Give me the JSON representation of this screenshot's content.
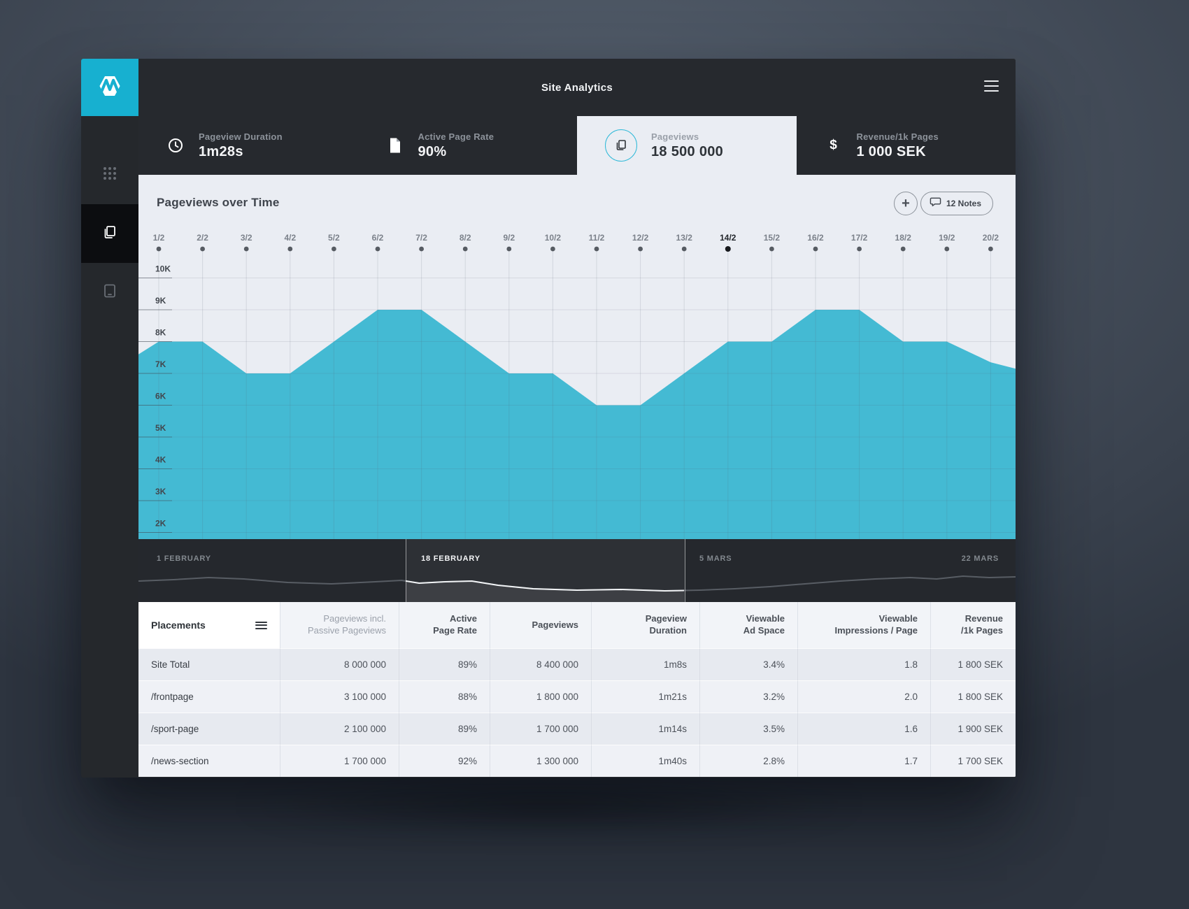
{
  "app": {
    "title": "Site Analytics",
    "menu_icon": "hamburger-icon"
  },
  "colors": {
    "accent": "#17b0d0",
    "area_fill": "#44bad3",
    "dark_bar": "#26292e",
    "panel_bg": "#eaedf3"
  },
  "sidebar": {
    "logo_icon": "pulse-hexagon-logo",
    "items": [
      {
        "icon": "grid-icon",
        "active": false
      },
      {
        "icon": "pages-icon",
        "active": true
      },
      {
        "icon": "device-icon",
        "active": false
      }
    ]
  },
  "kpis": [
    {
      "icon": "clock-icon",
      "label": "Pageview Duration",
      "value": "1m28s",
      "active": false
    },
    {
      "icon": "page-icon",
      "label": "Active Page Rate",
      "value": "90%",
      "active": false
    },
    {
      "icon": "pages-icon",
      "label": "Pageviews",
      "value": "18 500 000",
      "active": true
    },
    {
      "icon": "dollar-icon",
      "label": "Revenue/1k Pages",
      "value": "1 000 SEK",
      "active": false
    }
  ],
  "panel": {
    "title": "Pageviews over Time",
    "add_button_label": "+",
    "notes_button_label": "12 Notes",
    "notes_icon": "speech-bubble-icon"
  },
  "chart_data": {
    "type": "area",
    "title": "Pageviews over Time",
    "x": [
      "1/2",
      "2/2",
      "3/2",
      "4/2",
      "5/2",
      "6/2",
      "7/2",
      "8/2",
      "9/2",
      "10/2",
      "11/2",
      "12/2",
      "13/2",
      "14/2",
      "15/2",
      "16/2",
      "17/2",
      "18/2",
      "19/2",
      "20/2"
    ],
    "values": [
      8000,
      8000,
      7000,
      7000,
      8000,
      9000,
      9000,
      8000,
      7000,
      7000,
      6000,
      6000,
      7000,
      8000,
      8000,
      9000,
      9000,
      8000,
      8000,
      7350
    ],
    "edge_left_value": 7600,
    "edge_right_value": 7150,
    "selected_x": "14/2",
    "yticks": [
      "10K",
      "9K",
      "8K",
      "7K",
      "6K",
      "5K",
      "4K",
      "3K",
      "2K"
    ],
    "ylim": [
      1790,
      10900
    ],
    "grid": true,
    "legend": "none",
    "fill_color": "#44bad3"
  },
  "timeline": {
    "labels": [
      {
        "text": "1 FEBRUARY",
        "anchor": "left",
        "bright": false
      },
      {
        "text": "18 FEBRUARY",
        "anchor": "window-start",
        "bright": true
      },
      {
        "text": "5 MARS",
        "anchor": "window-end",
        "bright": false
      },
      {
        "text": "22 MARS",
        "anchor": "right",
        "bright": false
      }
    ],
    "window_fraction": [
      0.3047,
      0.622
    ],
    "spark": [
      [
        0,
        60
      ],
      [
        0.04,
        58
      ],
      [
        0.08,
        55
      ],
      [
        0.12,
        57
      ],
      [
        0.17,
        62
      ],
      [
        0.22,
        64
      ],
      [
        0.27,
        61
      ],
      [
        0.3,
        59
      ],
      [
        0.32,
        63
      ],
      [
        0.35,
        61
      ],
      [
        0.38,
        60
      ],
      [
        0.41,
        66
      ],
      [
        0.45,
        71
      ],
      [
        0.5,
        73
      ],
      [
        0.55,
        72
      ],
      [
        0.6,
        74
      ],
      [
        0.64,
        73
      ],
      [
        0.68,
        71
      ],
      [
        0.72,
        68
      ],
      [
        0.76,
        64
      ],
      [
        0.8,
        60
      ],
      [
        0.84,
        57
      ],
      [
        0.88,
        55
      ],
      [
        0.91,
        57
      ],
      [
        0.94,
        53
      ],
      [
        0.97,
        55
      ],
      [
        1,
        54
      ]
    ]
  },
  "table": {
    "first_header": "Placements",
    "first_header_icon": "hamburger-icon",
    "headers": [
      "Pageviews incl.\nPassive Pageviews",
      "Active\nPage Rate",
      "Pageviews",
      "Pageview\nDuration",
      "Viewable\nAd Space",
      "Viewable\nImpressions / Page",
      "Revenue\n/1k Pages"
    ],
    "rows": [
      {
        "placement": "Site Total",
        "cells": [
          "8 000 000",
          "89%",
          "8 400 000",
          "1m8s",
          "3.4%",
          "1.8",
          "1 800 SEK"
        ]
      },
      {
        "placement": "/frontpage",
        "cells": [
          "3 100 000",
          "88%",
          "1 800 000",
          "1m21s",
          "3.2%",
          "2.0",
          "1 800 SEK"
        ]
      },
      {
        "placement": "/sport-page",
        "cells": [
          "2 100 000",
          "89%",
          "1 700 000",
          "1m14s",
          "3.5%",
          "1.6",
          "1 900 SEK"
        ]
      },
      {
        "placement": "/news-section",
        "cells": [
          "1 700 000",
          "92%",
          "1 300 000",
          "1m40s",
          "2.8%",
          "1.7",
          "1 700 SEK"
        ]
      }
    ]
  }
}
